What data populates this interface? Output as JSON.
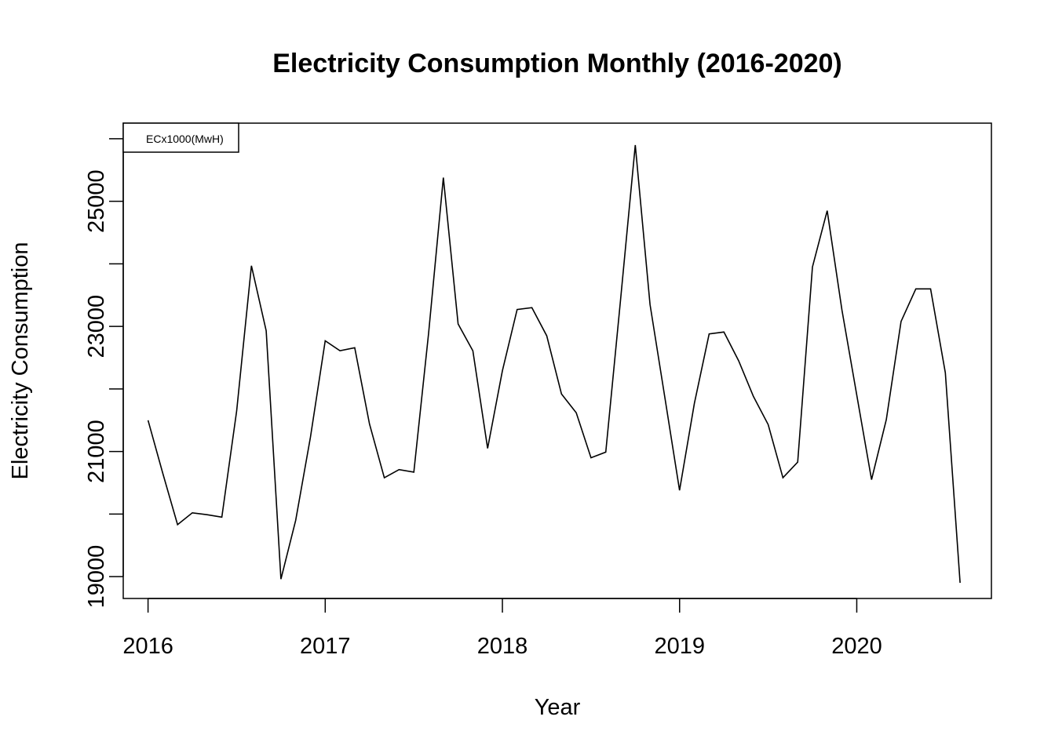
{
  "chart_data": {
    "type": "line",
    "title": "Electricity Consumption Monthly (2016-2020)",
    "xlabel": "Year",
    "ylabel": "Electricity Consumption",
    "xlim": [
      2015.86,
      2020.76
    ],
    "ylim": [
      18650,
      26250
    ],
    "x_ticks": [
      2016,
      2017,
      2018,
      2019,
      2020
    ],
    "y_ticks": [
      19000,
      21000,
      23000,
      25000
    ],
    "legend": {
      "position": "top-left",
      "entries": [
        "ECx1000(MwH)"
      ]
    },
    "grid": false,
    "series": [
      {
        "name": "ECx1000(MwH)",
        "color": "#000000",
        "start": "2016-01",
        "frequency": "monthly",
        "values": [
          21500,
          20650,
          19830,
          20020,
          19990,
          19950,
          21650,
          23970,
          22930,
          18960,
          19900,
          21230,
          22770,
          22610,
          22660,
          21440,
          20580,
          20710,
          20670,
          22890,
          25380,
          23040,
          22610,
          21050,
          22290,
          23270,
          23300,
          22850,
          21920,
          21620,
          20900,
          20990,
          23420,
          25900,
          23350,
          21870,
          20380,
          21770,
          22880,
          22910,
          22450,
          21880,
          21430,
          20580,
          20830,
          23950,
          24850,
          23260,
          21900,
          20550,
          21510,
          23080,
          23600,
          23600,
          22260,
          18900
        ]
      }
    ]
  }
}
